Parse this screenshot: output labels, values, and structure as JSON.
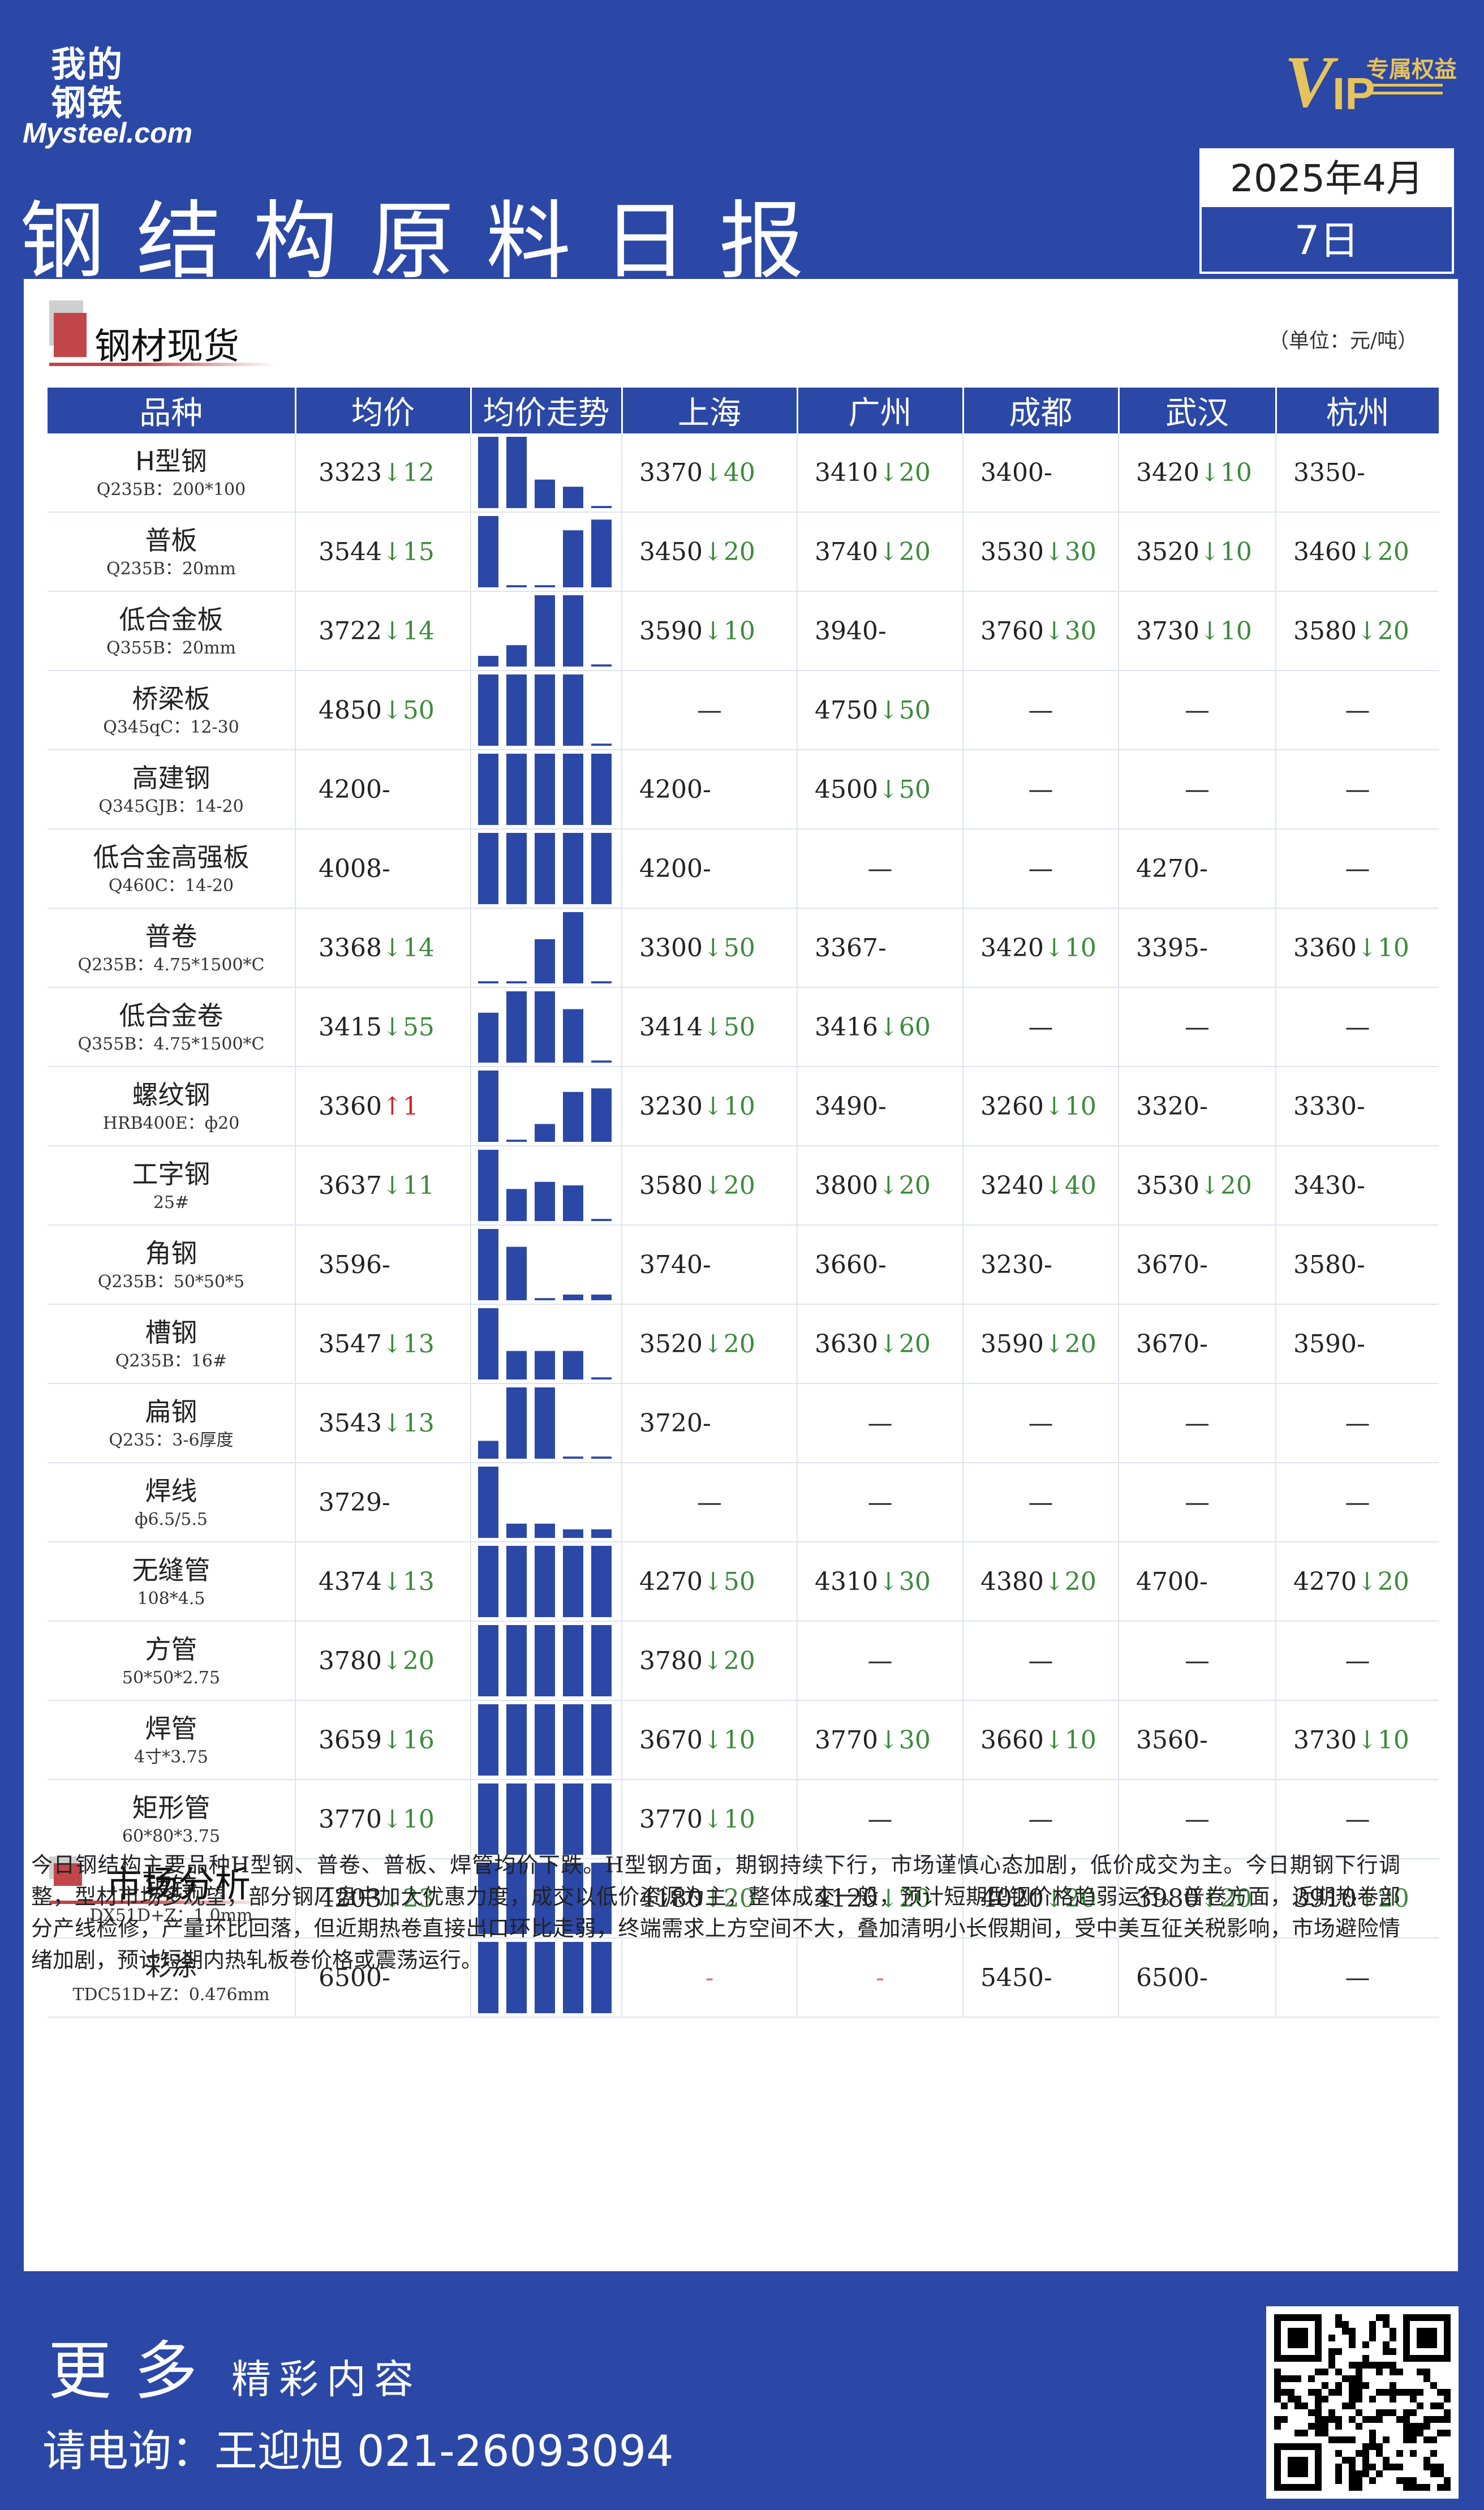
{
  "header": {
    "logo_cn": "我的钢铁",
    "logo_en": "Mysteel.com",
    "vip_tag": "专属权益",
    "title": "钢结构原料日报",
    "date_top": "2025年4月",
    "date_bottom": "7日"
  },
  "section1": {
    "title": "钢材现货",
    "unit": "（单位：元/吨）"
  },
  "table": {
    "headers": [
      "品种",
      "均价",
      "均价走势",
      "上海",
      "广州",
      "成都",
      "武汉",
      "杭州"
    ],
    "rows": [
      {
        "name": "H型钢",
        "spec": "Q235B：200*100",
        "avg": "3323",
        "avg_dir": "down",
        "avg_chg": "12",
        "trend": [
          100,
          100,
          40,
          30,
          3
        ],
        "cities": [
          {
            "v": "3370",
            "d": "down",
            "c": "40"
          },
          {
            "v": "3410",
            "d": "down",
            "c": "20"
          },
          {
            "v": "3400",
            "d": "flat",
            "c": ""
          },
          {
            "v": "3420",
            "d": "down",
            "c": "10"
          },
          {
            "v": "3350",
            "d": "flat",
            "c": ""
          }
        ]
      },
      {
        "name": "普板",
        "spec": "Q235B：20mm",
        "avg": "3544",
        "avg_dir": "down",
        "avg_chg": "15",
        "trend": [
          100,
          3,
          3,
          80,
          95
        ],
        "cities": [
          {
            "v": "3450",
            "d": "down",
            "c": "20"
          },
          {
            "v": "3740",
            "d": "down",
            "c": "20"
          },
          {
            "v": "3530",
            "d": "down",
            "c": "30"
          },
          {
            "v": "3520",
            "d": "down",
            "c": "10"
          },
          {
            "v": "3460",
            "d": "down",
            "c": "20"
          }
        ]
      },
      {
        "name": "低合金板",
        "spec": "Q355B：20mm",
        "avg": "3722",
        "avg_dir": "down",
        "avg_chg": "14",
        "trend": [
          15,
          30,
          100,
          100,
          3
        ],
        "cities": [
          {
            "v": "3590",
            "d": "down",
            "c": "10"
          },
          {
            "v": "3940",
            "d": "flat",
            "c": ""
          },
          {
            "v": "3760",
            "d": "down",
            "c": "30"
          },
          {
            "v": "3730",
            "d": "down",
            "c": "10"
          },
          {
            "v": "3580",
            "d": "down",
            "c": "20"
          }
        ]
      },
      {
        "name": "桥梁板",
        "spec": "Q345qC：12-30",
        "avg": "4850",
        "avg_dir": "down",
        "avg_chg": "50",
        "trend": [
          100,
          100,
          100,
          100,
          3
        ],
        "cities": [
          {
            "v": "",
            "d": "none",
            "c": ""
          },
          {
            "v": "4750",
            "d": "down",
            "c": "50"
          },
          {
            "v": "",
            "d": "none",
            "c": ""
          },
          {
            "v": "",
            "d": "none",
            "c": ""
          },
          {
            "v": "",
            "d": "none",
            "c": ""
          }
        ]
      },
      {
        "name": "高建钢",
        "spec": "Q345GJB：14-20",
        "avg": "4200",
        "avg_dir": "flat",
        "avg_chg": "",
        "trend": [
          100,
          100,
          100,
          100,
          100
        ],
        "cities": [
          {
            "v": "4200",
            "d": "flat",
            "c": ""
          },
          {
            "v": "4500",
            "d": "down",
            "c": "50"
          },
          {
            "v": "",
            "d": "none",
            "c": ""
          },
          {
            "v": "",
            "d": "none",
            "c": ""
          },
          {
            "v": "",
            "d": "none",
            "c": ""
          }
        ]
      },
      {
        "name": "低合金高强板",
        "spec": "Q460C：14-20",
        "avg": "4008",
        "avg_dir": "flat",
        "avg_chg": "",
        "trend": [
          100,
          100,
          100,
          100,
          100
        ],
        "cities": [
          {
            "v": "4200",
            "d": "flat",
            "c": ""
          },
          {
            "v": "",
            "d": "none",
            "c": ""
          },
          {
            "v": "",
            "d": "none",
            "c": ""
          },
          {
            "v": "4270",
            "d": "flat",
            "c": ""
          },
          {
            "v": "",
            "d": "none",
            "c": ""
          }
        ]
      },
      {
        "name": "普卷",
        "spec": "Q235B：4.75*1500*C",
        "avg": "3368",
        "avg_dir": "down",
        "avg_chg": "14",
        "trend": [
          3,
          3,
          62,
          100,
          3
        ],
        "cities": [
          {
            "v": "3300",
            "d": "down",
            "c": "50"
          },
          {
            "v": "3367",
            "d": "flat",
            "c": ""
          },
          {
            "v": "3420",
            "d": "down",
            "c": "10"
          },
          {
            "v": "3395",
            "d": "flat",
            "c": ""
          },
          {
            "v": "3360",
            "d": "down",
            "c": "10"
          }
        ]
      },
      {
        "name": "低合金卷",
        "spec": "Q355B：4.75*1500*C",
        "avg": "3415",
        "avg_dir": "down",
        "avg_chg": "55",
        "trend": [
          70,
          100,
          100,
          75,
          3
        ],
        "cities": [
          {
            "v": "3414",
            "d": "down",
            "c": "50"
          },
          {
            "v": "3416",
            "d": "down",
            "c": "60"
          },
          {
            "v": "",
            "d": "none",
            "c": ""
          },
          {
            "v": "",
            "d": "none",
            "c": ""
          },
          {
            "v": "",
            "d": "none",
            "c": ""
          }
        ]
      },
      {
        "name": "螺纹钢",
        "spec": "HRB400E：ф20",
        "avg": "3360",
        "avg_dir": "up",
        "avg_chg": "1",
        "trend": [
          100,
          3,
          25,
          70,
          75
        ],
        "cities": [
          {
            "v": "3230",
            "d": "down",
            "c": "10"
          },
          {
            "v": "3490",
            "d": "flat",
            "c": ""
          },
          {
            "v": "3260",
            "d": "down",
            "c": "10"
          },
          {
            "v": "3320",
            "d": "flat",
            "c": ""
          },
          {
            "v": "3330",
            "d": "flat",
            "c": ""
          }
        ]
      },
      {
        "name": "工字钢",
        "spec": "25#",
        "avg": "3637",
        "avg_dir": "down",
        "avg_chg": "11",
        "trend": [
          100,
          45,
          55,
          50,
          3
        ],
        "cities": [
          {
            "v": "3580",
            "d": "down",
            "c": "20"
          },
          {
            "v": "3800",
            "d": "down",
            "c": "20"
          },
          {
            "v": "3240",
            "d": "down",
            "c": "40"
          },
          {
            "v": "3530",
            "d": "down",
            "c": "20"
          },
          {
            "v": "3430",
            "d": "flat",
            "c": ""
          }
        ]
      },
      {
        "name": "角钢",
        "spec": "Q235B：50*50*5",
        "avg": "3596",
        "avg_dir": "flat",
        "avg_chg": "",
        "trend": [
          100,
          75,
          3,
          8,
          8
        ],
        "cities": [
          {
            "v": "3740",
            "d": "flat",
            "c": ""
          },
          {
            "v": "3660",
            "d": "flat",
            "c": ""
          },
          {
            "v": "3230",
            "d": "flat",
            "c": ""
          },
          {
            "v": "3670",
            "d": "flat",
            "c": ""
          },
          {
            "v": "3580",
            "d": "flat",
            "c": ""
          }
        ]
      },
      {
        "name": "槽钢",
        "spec": "Q235B：16#",
        "avg": "3547",
        "avg_dir": "down",
        "avg_chg": "13",
        "trend": [
          100,
          40,
          40,
          40,
          3
        ],
        "cities": [
          {
            "v": "3520",
            "d": "down",
            "c": "20"
          },
          {
            "v": "3630",
            "d": "down",
            "c": "20"
          },
          {
            "v": "3590",
            "d": "down",
            "c": "20"
          },
          {
            "v": "3670",
            "d": "flat",
            "c": ""
          },
          {
            "v": "3590",
            "d": "flat",
            "c": ""
          }
        ]
      },
      {
        "name": "扁钢",
        "spec": "Q235：3-6厚度",
        "avg": "3543",
        "avg_dir": "down",
        "avg_chg": "13",
        "trend": [
          25,
          100,
          100,
          3,
          3
        ],
        "cities": [
          {
            "v": "3720",
            "d": "flat",
            "c": ""
          },
          {
            "v": "",
            "d": "none",
            "c": ""
          },
          {
            "v": "",
            "d": "none",
            "c": ""
          },
          {
            "v": "",
            "d": "none",
            "c": ""
          },
          {
            "v": "",
            "d": "none",
            "c": ""
          }
        ]
      },
      {
        "name": "焊线",
        "spec": "ф6.5/5.5",
        "avg": "3729",
        "avg_dir": "flat",
        "avg_chg": "",
        "trend": [
          100,
          20,
          20,
          12,
          12
        ],
        "cities": [
          {
            "v": "",
            "d": "none",
            "c": ""
          },
          {
            "v": "",
            "d": "none",
            "c": ""
          },
          {
            "v": "",
            "d": "none",
            "c": ""
          },
          {
            "v": "",
            "d": "none",
            "c": ""
          },
          {
            "v": "",
            "d": "none",
            "c": ""
          }
        ]
      },
      {
        "name": "无缝管",
        "spec": "108*4.5",
        "avg": "4374",
        "avg_dir": "down",
        "avg_chg": "13",
        "trend": [
          100,
          100,
          100,
          100,
          100
        ],
        "cities": [
          {
            "v": "4270",
            "d": "down",
            "c": "50"
          },
          {
            "v": "4310",
            "d": "down",
            "c": "30"
          },
          {
            "v": "4380",
            "d": "down",
            "c": "20"
          },
          {
            "v": "4700",
            "d": "flat",
            "c": ""
          },
          {
            "v": "4270",
            "d": "down",
            "c": "20"
          }
        ]
      },
      {
        "name": "方管",
        "spec": "50*50*2.75",
        "avg": "3780",
        "avg_dir": "down",
        "avg_chg": "20",
        "trend": [
          100,
          100,
          100,
          100,
          100
        ],
        "cities": [
          {
            "v": "3780",
            "d": "down",
            "c": "20"
          },
          {
            "v": "",
            "d": "none",
            "c": ""
          },
          {
            "v": "",
            "d": "none",
            "c": ""
          },
          {
            "v": "",
            "d": "none",
            "c": ""
          },
          {
            "v": "",
            "d": "none",
            "c": ""
          }
        ]
      },
      {
        "name": "焊管",
        "spec": "4寸*3.75",
        "avg": "3659",
        "avg_dir": "down",
        "avg_chg": "16",
        "trend": [
          100,
          100,
          100,
          100,
          100
        ],
        "cities": [
          {
            "v": "3670",
            "d": "down",
            "c": "10"
          },
          {
            "v": "3770",
            "d": "down",
            "c": "30"
          },
          {
            "v": "3660",
            "d": "down",
            "c": "10"
          },
          {
            "v": "3560",
            "d": "flat",
            "c": ""
          },
          {
            "v": "3730",
            "d": "down",
            "c": "10"
          }
        ]
      },
      {
        "name": "矩形管",
        "spec": "60*80*3.75",
        "avg": "3770",
        "avg_dir": "down",
        "avg_chg": "10",
        "trend": [
          100,
          100,
          100,
          100,
          100
        ],
        "cities": [
          {
            "v": "3770",
            "d": "down",
            "c": "10"
          },
          {
            "v": "",
            "d": "none",
            "c": ""
          },
          {
            "v": "",
            "d": "none",
            "c": ""
          },
          {
            "v": "",
            "d": "none",
            "c": ""
          },
          {
            "v": "",
            "d": "none",
            "c": ""
          }
        ]
      },
      {
        "name": "镀锌",
        "spec": "DX51D+Z：1.0mm",
        "avg": "4203",
        "avg_dir": "down",
        "avg_chg": "23",
        "trend": [
          100,
          100,
          100,
          100,
          100
        ],
        "cities": [
          {
            "v": "4180",
            "d": "down",
            "c": "20"
          },
          {
            "v": "4120",
            "d": "down",
            "c": "20"
          },
          {
            "v": "4020",
            "d": "down",
            "c": "20"
          },
          {
            "v": "3980",
            "d": "down",
            "c": "20"
          },
          {
            "v": "3910",
            "d": "down",
            "c": "20"
          }
        ]
      },
      {
        "name": "彩涂",
        "spec": "TDC51D+Z：0.476mm",
        "avg": "6500",
        "avg_dir": "flat",
        "avg_chg": "",
        "trend": [
          100,
          100,
          100,
          100,
          100
        ],
        "cities": [
          {
            "v": "",
            "d": "na",
            "c": ""
          },
          {
            "v": "",
            "d": "na",
            "c": ""
          },
          {
            "v": "5450",
            "d": "flat",
            "c": ""
          },
          {
            "v": "6500",
            "d": "flat",
            "c": ""
          },
          {
            "v": "",
            "d": "none",
            "c": ""
          }
        ]
      }
    ]
  },
  "section2": {
    "title": "市场分析",
    "text": "今日钢结构主要品种H型钢、普卷、普板、焊管均价下跌。H型钢方面，期钢持续下行，市场谨慎心态加剧，低价成交为主。今日期钢下行调整，型材市场多观望，部分钢厂盘中加大优惠力度，成交以低价资源为主，整体成交一般，预计短期型钢价格趋弱运行。普卷方面，近期热卷部分产线检修，产量环比回落，但近期热卷直接出口环比走弱，终端需求上方空间不大，叠加清明小长假期间，受中美互征关税影响，市场避险情绪加剧，预计短期内热轧板卷价格或震荡运行。"
  },
  "footer": {
    "more_big": "更多",
    "more_small": "精彩内容",
    "contact": "请电询：王迎旭  021-26093094"
  },
  "colors": {
    "brand_blue": "#2b48a6",
    "down_green": "#3b8a3b",
    "up_red": "#d62424",
    "accent_red": "#c0464a",
    "vip_gold": "#e6c35c"
  }
}
